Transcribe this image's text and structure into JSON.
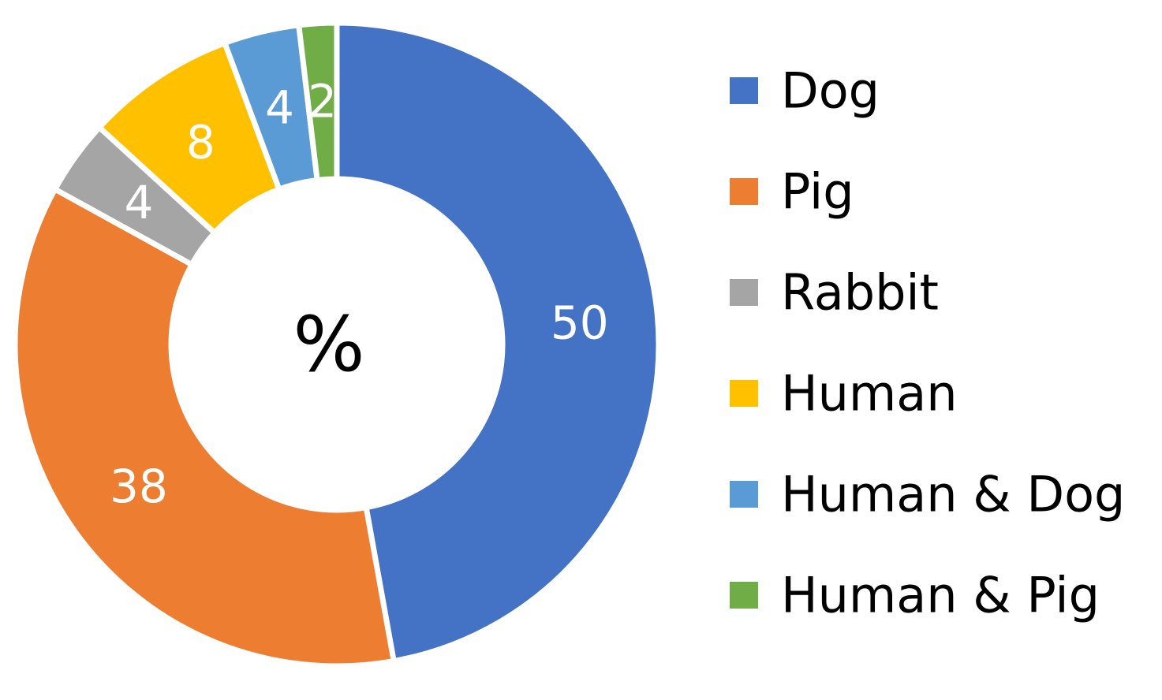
{
  "chart_data": {
    "type": "pie",
    "center_label": "%",
    "categories": [
      "Dog",
      "Pig",
      "Rabbit",
      "Human",
      "Human & Dog",
      "Human & Pig"
    ],
    "values": [
      50,
      38,
      4,
      8,
      4,
      2
    ],
    "colors": [
      "#4472c4",
      "#ed7d31",
      "#a5a5a5",
      "#ffc000",
      "#5b9bd5",
      "#70ad47"
    ],
    "legend": "right"
  }
}
